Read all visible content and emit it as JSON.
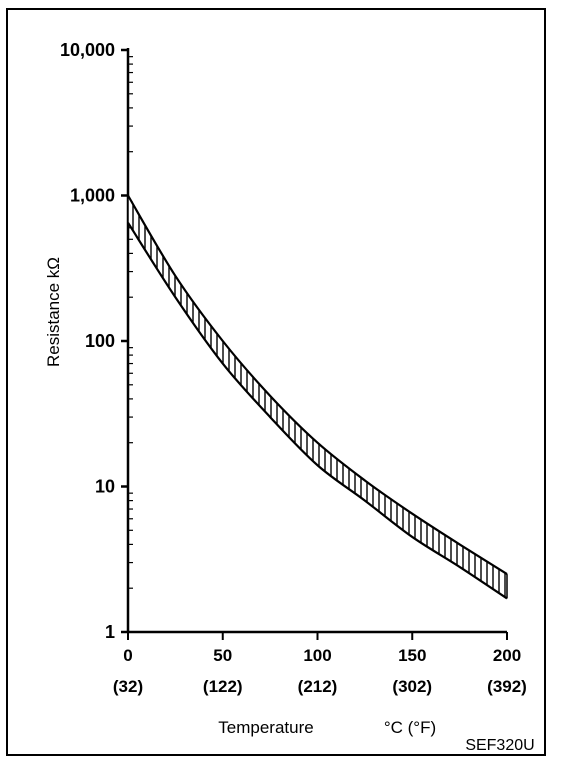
{
  "chart_data": {
    "type": "area",
    "title": "",
    "ylabel": "Resistance kΩ",
    "xlabel": "Temperature",
    "xlabel_unit": "°C (°F)",
    "x_ticks": [
      {
        "c": "0",
        "f": "(32)"
      },
      {
        "c": "50",
        "f": "(122)"
      },
      {
        "c": "100",
        "f": "(212)"
      },
      {
        "c": "150",
        "f": "(302)"
      },
      {
        "c": "200",
        "f": "(392)"
      }
    ],
    "y_ticks": [
      "1",
      "10",
      "100",
      "1,000",
      "10,000"
    ],
    "y_scale": "log",
    "xlim": [
      0,
      200
    ],
    "ylim": [
      1,
      10000
    ],
    "series": [
      {
        "x": [
          0,
          25,
          50,
          75,
          100,
          125,
          150,
          175,
          200
        ],
        "values": [
          1000,
          280,
          100,
          42,
          20,
          11,
          6.5,
          4,
          2.5
        ]
      },
      {
        "x": [
          0,
          25,
          50,
          75,
          100,
          125,
          150,
          175,
          200
        ],
        "values": [
          650,
          200,
          70,
          30,
          14,
          8,
          4.5,
          2.8,
          1.7
        ]
      }
    ],
    "band_fill": "vertical hatch between upper and lower curve",
    "grid": false,
    "figure_id": "SEF320U"
  }
}
